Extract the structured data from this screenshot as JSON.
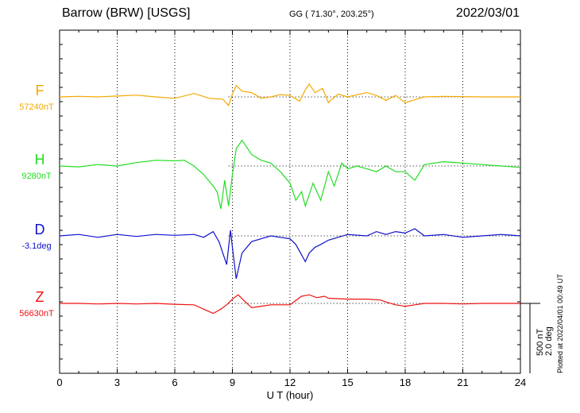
{
  "header": {
    "station": "Barrow (BRW)  [USGS]",
    "coords": "GG ( 71.30°, 203.25°)",
    "date": "2022/03/01",
    "plotted": "Plotted at 2022/04/01 00:49 UT"
  },
  "chart_data": {
    "type": "line",
    "xlabel": "U T (hour)",
    "xlim": [
      0,
      24
    ],
    "xticks": [
      0,
      3,
      6,
      9,
      12,
      15,
      18,
      21,
      24
    ],
    "x_tick_labels": [
      "0",
      "3",
      "6",
      "9",
      "12",
      "15",
      "18",
      "21",
      "24"
    ],
    "grid": true,
    "units_per_500nT_scale": "500 nT",
    "scale_labels": [
      "500 nT",
      "2.0 deg"
    ],
    "series": [
      {
        "name": "F",
        "baseline_label": "57240nT",
        "color": "#f5a800",
        "points": [
          [
            0,
            0
          ],
          [
            1,
            2
          ],
          [
            2,
            0
          ],
          [
            3,
            3
          ],
          [
            4,
            6
          ],
          [
            5,
            0
          ],
          [
            6,
            -5
          ],
          [
            7,
            12
          ],
          [
            7.8,
            -5
          ],
          [
            8.5,
            -8
          ],
          [
            8.8,
            -30
          ],
          [
            9,
            10
          ],
          [
            9.2,
            40
          ],
          [
            9.5,
            20
          ],
          [
            10,
            15
          ],
          [
            10.5,
            -5
          ],
          [
            11,
            0
          ],
          [
            11.5,
            8
          ],
          [
            12,
            5
          ],
          [
            12.5,
            -15
          ],
          [
            12.8,
            25
          ],
          [
            13,
            45
          ],
          [
            13.3,
            15
          ],
          [
            13.7,
            30
          ],
          [
            14,
            -20
          ],
          [
            14.5,
            10
          ],
          [
            15,
            0
          ],
          [
            16,
            15
          ],
          [
            16.5,
            5
          ],
          [
            17,
            -12
          ],
          [
            17.5,
            5
          ],
          [
            18,
            -20
          ],
          [
            18.5,
            -10
          ],
          [
            19,
            0
          ],
          [
            20,
            2
          ],
          [
            22,
            0
          ],
          [
            24,
            0
          ]
        ]
      },
      {
        "name": "H",
        "baseline_label": "9280nT",
        "color": "#22dd22",
        "points": [
          [
            0,
            0
          ],
          [
            1,
            -3
          ],
          [
            2,
            5
          ],
          [
            3,
            0
          ],
          [
            4,
            12
          ],
          [
            5,
            20
          ],
          [
            6,
            18
          ],
          [
            6.5,
            20
          ],
          [
            7,
            0
          ],
          [
            7.5,
            -30
          ],
          [
            8,
            -70
          ],
          [
            8.2,
            -90
          ],
          [
            8.4,
            -150
          ],
          [
            8.6,
            -50
          ],
          [
            8.8,
            -140
          ],
          [
            9,
            -30
          ],
          [
            9.2,
            60
          ],
          [
            9.5,
            90
          ],
          [
            10,
            40
          ],
          [
            10.5,
            20
          ],
          [
            11,
            10
          ],
          [
            11.5,
            -20
          ],
          [
            12,
            -60
          ],
          [
            12.3,
            -120
          ],
          [
            12.6,
            -90
          ],
          [
            12.8,
            -140
          ],
          [
            13.2,
            -60
          ],
          [
            13.6,
            -120
          ],
          [
            14,
            -20
          ],
          [
            14.3,
            -70
          ],
          [
            14.7,
            10
          ],
          [
            15,
            -10
          ],
          [
            15.5,
            0
          ],
          [
            16,
            -10
          ],
          [
            16.5,
            -20
          ],
          [
            17,
            0
          ],
          [
            17.5,
            -20
          ],
          [
            18,
            -20
          ],
          [
            18.5,
            -50
          ],
          [
            19,
            5
          ],
          [
            20,
            15
          ],
          [
            21,
            10
          ],
          [
            22,
            5
          ],
          [
            23,
            0
          ],
          [
            24,
            -5
          ]
        ]
      },
      {
        "name": "D",
        "baseline_label": "-3.1deg",
        "color": "#1111cc",
        "points": [
          [
            0,
            0
          ],
          [
            1,
            5
          ],
          [
            2,
            -5
          ],
          [
            3,
            5
          ],
          [
            4,
            -2
          ],
          [
            5,
            5
          ],
          [
            6,
            2
          ],
          [
            7,
            5
          ],
          [
            7.5,
            -5
          ],
          [
            8,
            15
          ],
          [
            8.3,
            -20
          ],
          [
            8.5,
            -60
          ],
          [
            8.7,
            -100
          ],
          [
            8.9,
            20
          ],
          [
            9,
            -40
          ],
          [
            9.2,
            -150
          ],
          [
            9.5,
            -60
          ],
          [
            10,
            -20
          ],
          [
            10.5,
            -10
          ],
          [
            11,
            0
          ],
          [
            11.5,
            -5
          ],
          [
            12,
            -10
          ],
          [
            12.3,
            -30
          ],
          [
            12.8,
            -90
          ],
          [
            13,
            -60
          ],
          [
            13.3,
            -40
          ],
          [
            13.6,
            -30
          ],
          [
            14,
            -15
          ],
          [
            14.5,
            -5
          ],
          [
            15,
            5
          ],
          [
            16,
            0
          ],
          [
            16.5,
            15
          ],
          [
            17,
            5
          ],
          [
            17.5,
            15
          ],
          [
            18,
            10
          ],
          [
            18.5,
            25
          ],
          [
            19,
            0
          ],
          [
            20,
            5
          ],
          [
            21,
            -5
          ],
          [
            22,
            0
          ],
          [
            23,
            5
          ],
          [
            24,
            0
          ]
        ]
      },
      {
        "name": "Z",
        "baseline_label": "56630nT",
        "color": "#ee1111",
        "points": [
          [
            0,
            0
          ],
          [
            1,
            0
          ],
          [
            2,
            -2
          ],
          [
            3,
            0
          ],
          [
            4,
            -2
          ],
          [
            5,
            0
          ],
          [
            6,
            -3
          ],
          [
            7,
            -5
          ],
          [
            7.5,
            -20
          ],
          [
            8,
            -35
          ],
          [
            8.4,
            -20
          ],
          [
            8.7,
            -5
          ],
          [
            9,
            15
          ],
          [
            9.3,
            30
          ],
          [
            9.6,
            10
          ],
          [
            10,
            -15
          ],
          [
            10.5,
            -10
          ],
          [
            11,
            -5
          ],
          [
            11.5,
            -5
          ],
          [
            12,
            -5
          ],
          [
            12.3,
            10
          ],
          [
            12.6,
            25
          ],
          [
            13,
            30
          ],
          [
            13.4,
            20
          ],
          [
            13.8,
            25
          ],
          [
            14,
            18
          ],
          [
            15,
            15
          ],
          [
            16,
            15
          ],
          [
            16.7,
            12
          ],
          [
            17,
            5
          ],
          [
            17.5,
            -5
          ],
          [
            18,
            -10
          ],
          [
            18.5,
            -5
          ],
          [
            19,
            0
          ],
          [
            20,
            0
          ],
          [
            21,
            -2
          ],
          [
            22,
            0
          ],
          [
            24,
            0
          ]
        ]
      }
    ]
  }
}
